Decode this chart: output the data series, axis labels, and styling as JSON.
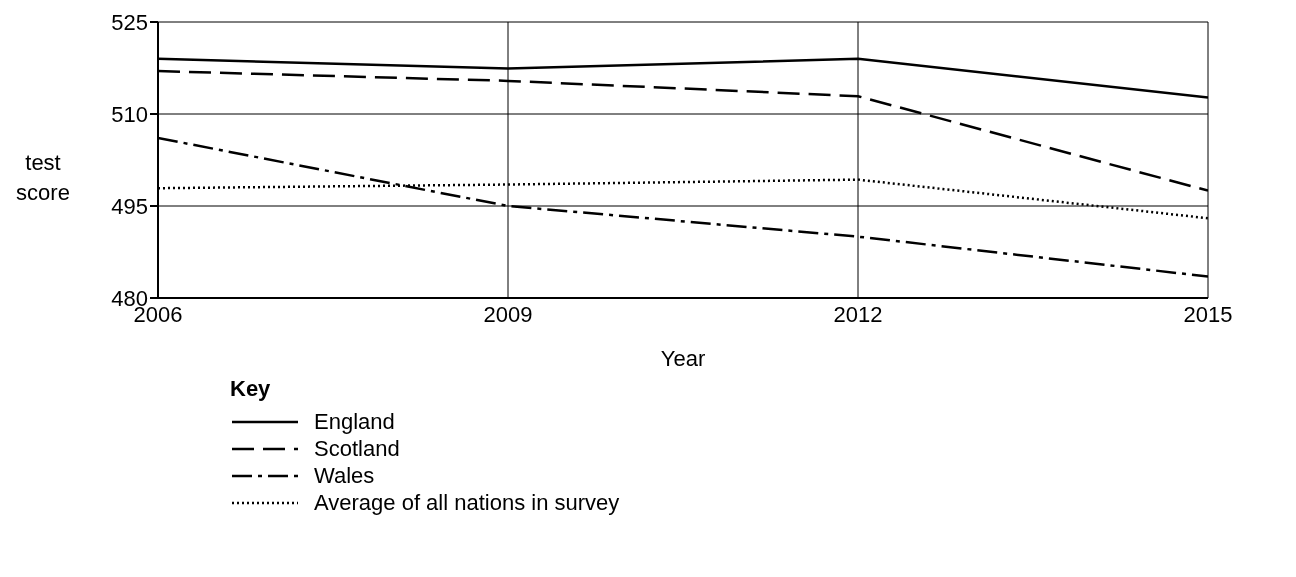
{
  "chart_data": {
    "type": "line",
    "xlabel": "Year",
    "ylabel": "test score",
    "legend_title": "Key",
    "legend": "bottom",
    "grid": true,
    "marker": "none",
    "x": [
      2006,
      2009,
      2012,
      2015
    ],
    "xlim": [
      2006,
      2015
    ],
    "xticks": [
      2006,
      2009,
      2012,
      2015
    ],
    "ylim": [
      480,
      525
    ],
    "yticks": [
      480,
      495,
      510,
      525
    ],
    "series": [
      {
        "name": "England",
        "color": "#000000",
        "line_style": "solid",
        "values": [
          519,
          517.4,
          519,
          512.7
        ]
      },
      {
        "name": "Scotland",
        "color": "#000000",
        "line_style": "dashed",
        "values": [
          517,
          515.4,
          512.9,
          497.5
        ]
      },
      {
        "name": "Wales",
        "color": "#000000",
        "line_style": "dashdot",
        "values": [
          506.1,
          495,
          490,
          483.5
        ]
      },
      {
        "name": "Average of all nations in survey",
        "color": "#000000",
        "line_style": "dotted",
        "values": [
          497.9,
          498.5,
          499.3,
          493
        ]
      }
    ]
  }
}
